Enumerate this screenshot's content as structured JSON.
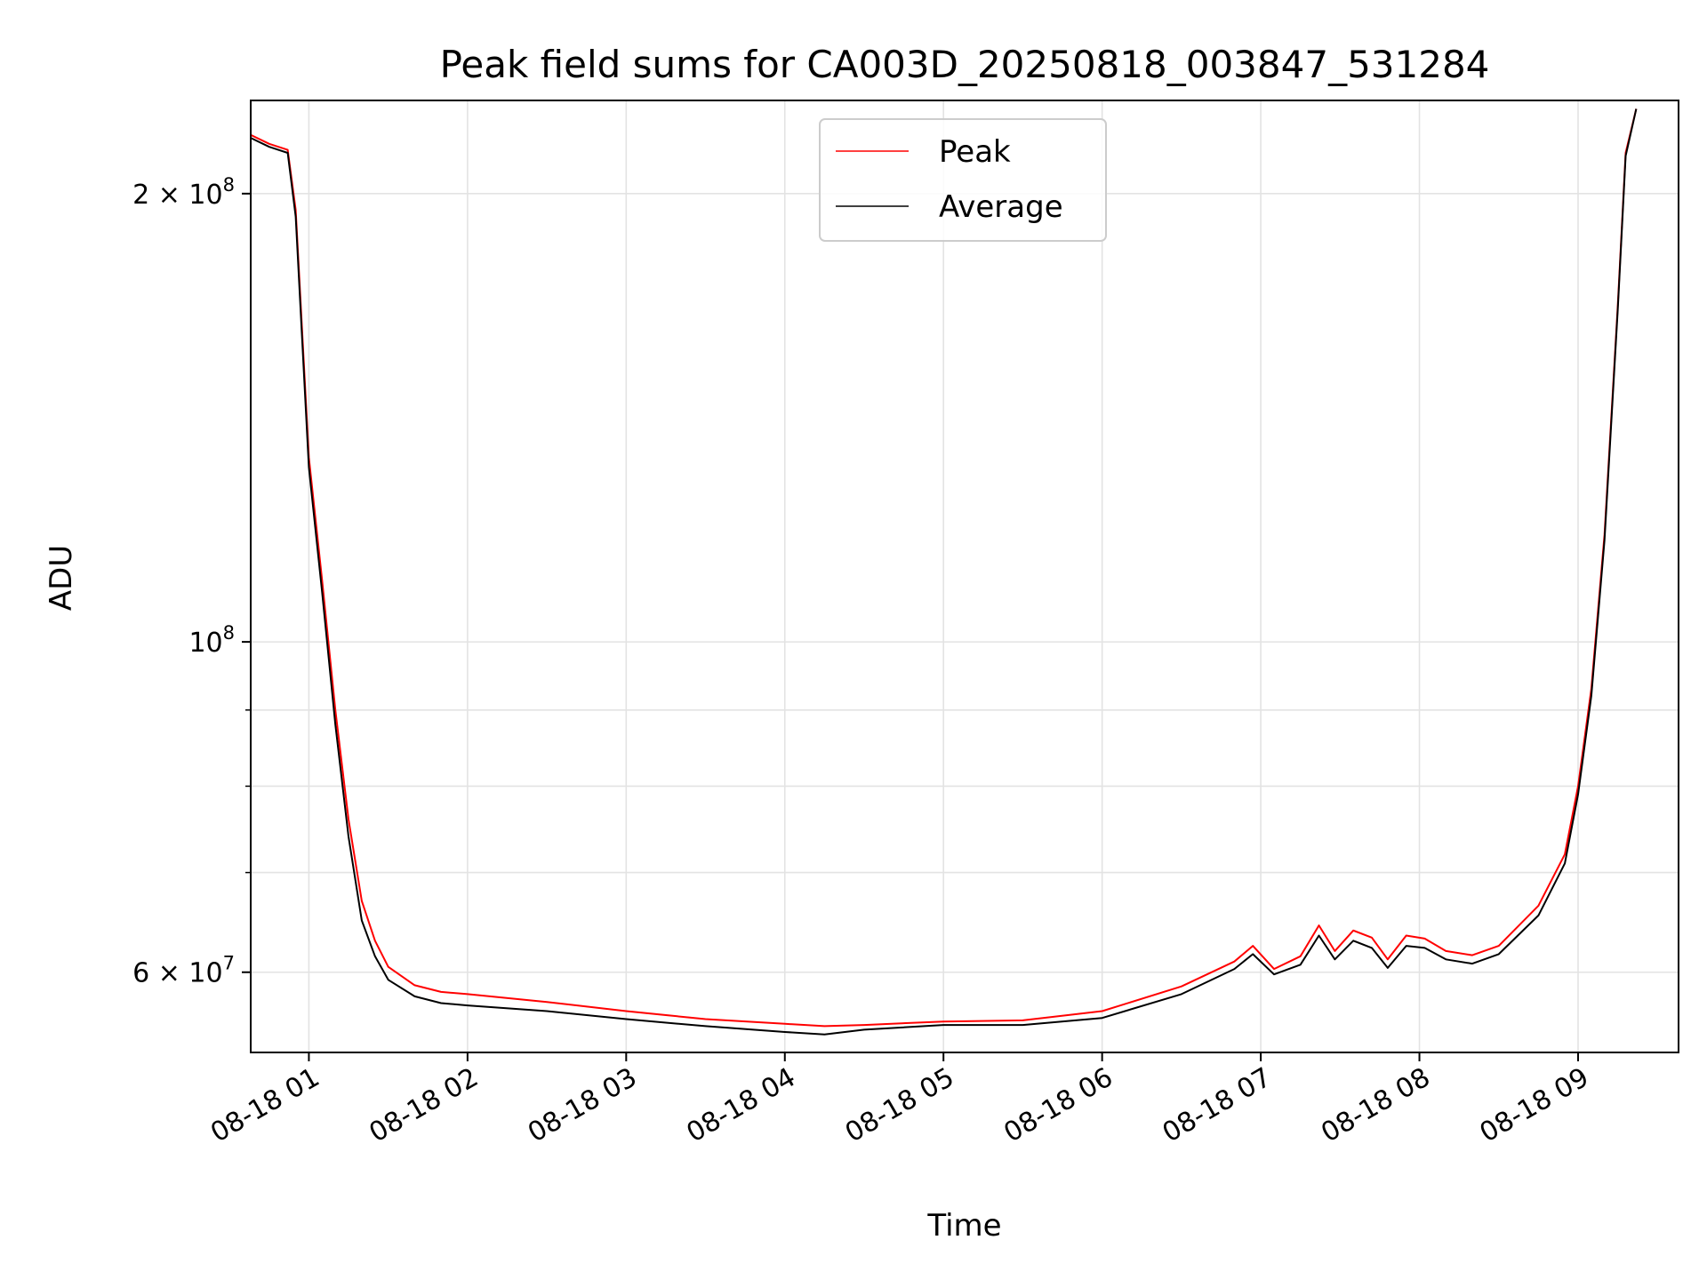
{
  "chart_data": {
    "type": "line",
    "title": "Peak field sums for CA003D_20250818_003847_531284",
    "xlabel": "Time",
    "ylabel": "ADU",
    "xlim": [
      "2025-08-18 00:38",
      "2025-08-18 09:38"
    ],
    "ylim": [
      53000000,
      231000000
    ],
    "y_scale": "log",
    "grid": true,
    "legend_position": "top-center",
    "x_ticks": [
      "08-18 01",
      "08-18 02",
      "08-18 03",
      "08-18 04",
      "08-18 05",
      "08-18 06",
      "08-18 07",
      "08-18 08",
      "08-18 09"
    ],
    "y_ticks": [
      {
        "value": 60000000,
        "mantissa": "6",
        "exponent": "7"
      },
      {
        "value": 100000000,
        "mantissa": "",
        "exponent": "8"
      },
      {
        "value": 200000000,
        "mantissa": "2",
        "exponent": "8"
      }
    ],
    "x": [
      "2025-08-18 00:38",
      "2025-08-18 00:45",
      "2025-08-18 00:52",
      "2025-08-18 00:55",
      "2025-08-18 01:00",
      "2025-08-18 01:05",
      "2025-08-18 01:10",
      "2025-08-18 01:15",
      "2025-08-18 01:20",
      "2025-08-18 01:25",
      "2025-08-18 01:30",
      "2025-08-18 01:40",
      "2025-08-18 01:50",
      "2025-08-18 02:00",
      "2025-08-18 02:30",
      "2025-08-18 03:00",
      "2025-08-18 03:30",
      "2025-08-18 04:00",
      "2025-08-18 04:15",
      "2025-08-18 04:30",
      "2025-08-18 05:00",
      "2025-08-18 05:30",
      "2025-08-18 06:00",
      "2025-08-18 06:30",
      "2025-08-18 06:50",
      "2025-08-18 06:57",
      "2025-08-18 07:05",
      "2025-08-18 07:15",
      "2025-08-18 07:22",
      "2025-08-18 07:28",
      "2025-08-18 07:35",
      "2025-08-18 07:42",
      "2025-08-18 07:48",
      "2025-08-18 07:55",
      "2025-08-18 08:02",
      "2025-08-18 08:10",
      "2025-08-18 08:20",
      "2025-08-18 08:30",
      "2025-08-18 08:45",
      "2025-08-18 08:55",
      "2025-08-18 09:00",
      "2025-08-18 09:05",
      "2025-08-18 09:10",
      "2025-08-18 09:15",
      "2025-08-18 09:18",
      "2025-08-18 09:22"
    ],
    "series": [
      {
        "name": "Peak",
        "color": "#ff0000",
        "values": [
          219000000,
          216000000,
          214000000,
          195000000,
          133000000,
          110000000,
          90000000,
          76000000,
          67000000,
          63000000,
          60500000,
          58800000,
          58200000,
          58000000,
          57300000,
          56500000,
          55800000,
          55400000,
          55200000,
          55300000,
          55600000,
          55700000,
          56500000,
          58700000,
          61000000,
          62500000,
          60300000,
          61500000,
          64500000,
          62000000,
          64000000,
          63300000,
          61200000,
          63500000,
          63200000,
          62000000,
          61600000,
          62500000,
          66500000,
          72000000,
          80000000,
          93000000,
          118000000,
          168000000,
          213000000,
          228000000
        ]
      },
      {
        "name": "Average",
        "color": "#000000",
        "values": [
          218000000,
          215000000,
          213000000,
          193000000,
          131000000,
          108000000,
          88000000,
          74000000,
          65000000,
          61500000,
          59300000,
          57800000,
          57200000,
          57000000,
          56500000,
          55800000,
          55200000,
          54700000,
          54500000,
          54900000,
          55300000,
          55300000,
          55900000,
          58000000,
          60300000,
          61700000,
          59800000,
          60700000,
          63500000,
          61200000,
          63000000,
          62300000,
          60400000,
          62500000,
          62300000,
          61200000,
          60800000,
          61700000,
          65500000,
          71000000,
          79000000,
          92000000,
          117000000,
          167000000,
          212000000,
          228000000
        ]
      }
    ]
  }
}
